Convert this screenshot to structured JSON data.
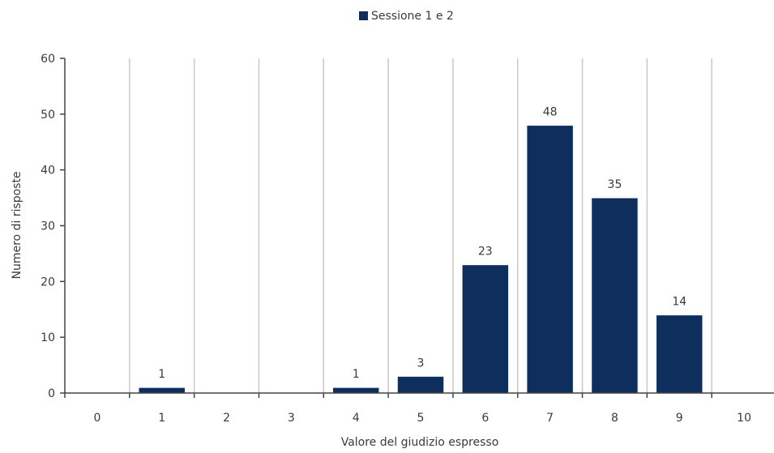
{
  "chart_data": {
    "type": "bar",
    "categories": [
      "0",
      "1",
      "2",
      "3",
      "4",
      "5",
      "6",
      "7",
      "8",
      "9",
      "10"
    ],
    "series": [
      {
        "name": "Sessione 1 e 2",
        "values": [
          0,
          1,
          0,
          0,
          1,
          3,
          23,
          48,
          35,
          14,
          0
        ],
        "color": "#0e2f5e"
      }
    ],
    "data_labels": [
      "",
      "1",
      "",
      "",
      "1",
      "3",
      "23",
      "48",
      "35",
      "14",
      ""
    ],
    "xlabel": "Valore del giudizio espresso",
    "ylabel": "Numero di risposte",
    "ylim": [
      0,
      60
    ],
    "yticks": [
      "0",
      "10",
      "20",
      "30",
      "40",
      "50",
      "60"
    ],
    "grid": "vertical",
    "legend_position": "top-center"
  }
}
